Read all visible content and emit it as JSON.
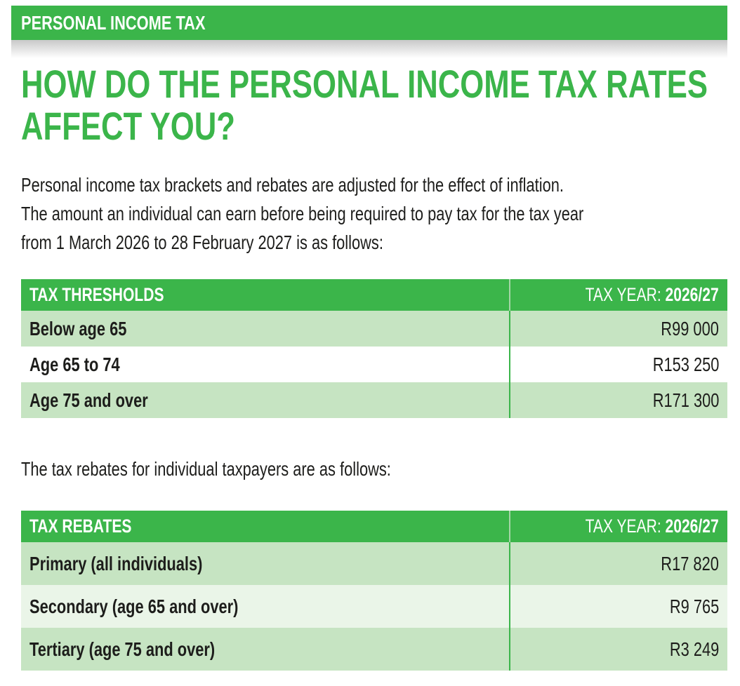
{
  "section_label": "PERSONAL INCOME TAX",
  "title_line1": "HOW DO THE PERSONAL INCOME TAX RATES",
  "title_line2": "AFFECT YOU?",
  "intro_lines": [
    "Personal income tax brackets and rebates are adjusted for the effect of inflation.",
    "The amount an individual can earn before being required to pay tax for the tax year",
    "from 1 March 2026 to 28 February 2027 is as follows:"
  ],
  "thresholds": {
    "header_label": "TAX THRESHOLDS",
    "header_year_prefix": "TAX YEAR: ",
    "header_year": "2026/27",
    "rows": [
      {
        "label": "Below age 65",
        "value": "R99 000"
      },
      {
        "label": "Age 65 to 74",
        "value": "R153 250"
      },
      {
        "label": "Age 75 and over",
        "value": "R171 300"
      }
    ]
  },
  "rebates_intro": "The tax rebates for individual taxpayers are as follows:",
  "rebates": {
    "header_label": "TAX REBATES",
    "header_year_prefix": "TAX YEAR: ",
    "header_year": "2026/27",
    "rows": [
      {
        "label": "Primary (all individuals)",
        "value": "R17 820"
      },
      {
        "label": "Secondary (age 65 and over)",
        "value": "R9 765"
      },
      {
        "label": "Tertiary (age 75 and over)",
        "value": "R3 249"
      }
    ]
  },
  "colors": {
    "brand_green": "#3bb54a",
    "row_green": "#c6e4c2",
    "row_light": "#eaf5e8"
  }
}
